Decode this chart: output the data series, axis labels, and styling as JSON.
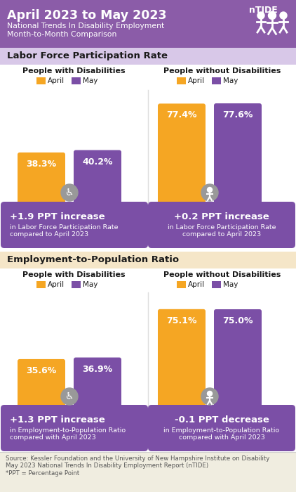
{
  "title_line1": "April 2023 to May 2023",
  "title_sub1": "National Trends In Disability Employment",
  "title_sub2": "Month-to-Month Comparison",
  "header_bg": "#8B5CA8",
  "section1_bg": "#D8C8E8",
  "section2_bg": "#F5E6C8",
  "section1_label": "Labor Force Participation Rate",
  "section2_label": "Employment-to-Population Ratio",
  "april_color": "#F5A623",
  "may_color": "#7B4FA6",
  "pwd_april_lfpr": 38.3,
  "pwd_may_lfpr": 40.2,
  "pwod_april_lfpr": 77.4,
  "pwod_may_lfpr": 77.6,
  "pwd_april_epop": 35.6,
  "pwd_may_epop": 36.9,
  "pwod_april_epop": 75.1,
  "pwod_may_epop": 75.0,
  "box1_bold": "+1.9 PPT increase",
  "box1_text": "in Labor Force Participation Rate\ncompared to April 2023",
  "box2_bold": "+0.2 PPT increase",
  "box2_text": "in Labor Force Participation Rate\ncompared to April 2023",
  "box3_bold": "+1.3 PPT increase",
  "box3_text": "in Employment-to-Population Ratio\ncompared with April 2023",
  "box4_bold": "-0.1 PPT decrease",
  "box4_text": "in Employment-to-Population Ratio\ncompared with April 2023",
  "source_text": "Source: Kessler Foundation and the University of New Hampshire Institute on Disability\nMay 2023 National Trends In Disability Employment Report (nTIDE)\n*PPT = Percentage Point",
  "box_bg": "#7B4FA6",
  "icon_bg": "#999999",
  "white": "#FFFFFF",
  "dark": "#1a1a1a",
  "medium_gray": "#555555"
}
